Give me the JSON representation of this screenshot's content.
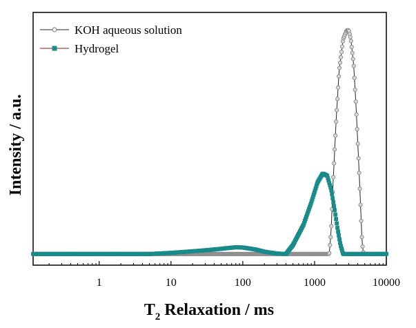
{
  "chart_data": {
    "type": "line",
    "title": "",
    "xlabel_main": "T",
    "xlabel_sub": "2",
    "xlabel_rest": " Relaxation / ms",
    "ylabel": "Intensity / a.u.",
    "xscale": "log",
    "xlim": [
      0.12,
      10000
    ],
    "ylim": [
      -0.05,
      1.08
    ],
    "x_ticks": [
      1,
      10,
      100,
      1000,
      10000
    ],
    "x_tick_labels": [
      "1",
      "10",
      "100",
      "1000",
      "10000"
    ],
    "grid": false,
    "legend_position": "top-left",
    "series": [
      {
        "name": "KOH aqueous solution",
        "color": "#8c8c8c",
        "line_color": "#222222",
        "marker": "circle",
        "x": [
          0.12,
          0.5,
          1,
          5,
          10,
          50,
          100,
          300,
          1000,
          1600,
          1700,
          1800,
          2000,
          2200,
          2500,
          2800,
          3000,
          3200,
          3500,
          3800,
          4200,
          4600,
          4800,
          10000
        ],
        "y": [
          0,
          0,
          0,
          0,
          0,
          0,
          0,
          0,
          0,
          0,
          0.1,
          0.3,
          0.6,
          0.82,
          0.96,
          1.0,
          1.0,
          0.96,
          0.85,
          0.65,
          0.35,
          0.05,
          0,
          0
        ]
      },
      {
        "name": "Hydrogel",
        "color": "#1a8a8a",
        "line_color": "#8b1a1a",
        "marker": "square",
        "x": [
          0.12,
          1,
          5,
          10,
          20,
          40,
          60,
          80,
          100,
          150,
          200,
          300,
          400,
          500,
          700,
          900,
          1100,
          1300,
          1500,
          1700,
          1900,
          2100,
          2300,
          2500,
          10000
        ],
        "y": [
          0,
          0,
          0,
          0.005,
          0.012,
          0.02,
          0.026,
          0.03,
          0.029,
          0.02,
          0.01,
          0.002,
          0,
          0.04,
          0.13,
          0.23,
          0.32,
          0.36,
          0.35,
          0.29,
          0.2,
          0.11,
          0.04,
          0,
          0
        ]
      }
    ]
  }
}
